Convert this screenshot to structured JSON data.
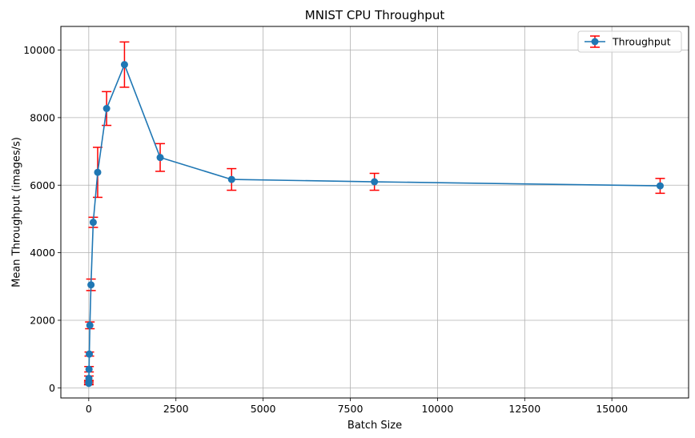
{
  "chart_data": {
    "type": "line",
    "title": "MNIST CPU Throughput",
    "xlabel": "Batch Size",
    "ylabel": "Mean Throughput (images/s)",
    "xlim": [
      -800,
      17200
    ],
    "ylim": [
      -300,
      10700
    ],
    "xticks": [
      0,
      2500,
      5000,
      7500,
      10000,
      12500,
      15000
    ],
    "xtick_labels": [
      "0",
      "2500",
      "5000",
      "7500",
      "10000",
      "12500",
      "15000"
    ],
    "yticks": [
      0,
      2000,
      4000,
      6000,
      8000,
      10000
    ],
    "ytick_labels": [
      "0",
      "2000",
      "4000",
      "6000",
      "8000",
      "10000"
    ],
    "grid": true,
    "legend_position": "top-right",
    "series": [
      {
        "name": "Throughput",
        "color": "#1f77b4",
        "error_color": "#ff0000",
        "x": [
          1,
          2,
          4,
          8,
          16,
          32,
          64,
          128,
          256,
          512,
          1024,
          2048,
          4096,
          8192,
          16384
        ],
        "y": [
          130,
          170,
          280,
          550,
          1000,
          1850,
          3050,
          4900,
          6380,
          8270,
          9570,
          6820,
          6170,
          6100,
          5980
        ],
        "error": [
          40,
          50,
          70,
          80,
          60,
          100,
          170,
          150,
          740,
          500,
          670,
          410,
          320,
          250,
          220
        ]
      }
    ]
  }
}
